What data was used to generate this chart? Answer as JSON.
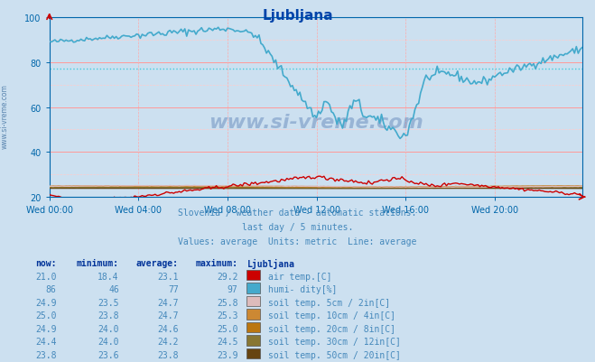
{
  "title": "Ljubljana",
  "background_color": "#cce0f0",
  "plot_bg_color": "#cce0f0",
  "grid_color_major": "#ff9999",
  "grid_color_minor": "#ffcccc",
  "axis_color": "#0055aa",
  "tick_color": "#0066aa",
  "ylabel_range": [
    20,
    100
  ],
  "yticks": [
    20,
    40,
    60,
    80,
    100
  ],
  "subtitle_lines": [
    "Slovenia / weather data - automatic stations.",
    "last day / 5 minutes.",
    "Values: average  Units: metric  Line: average"
  ],
  "subtitle_color": "#4488bb",
  "watermark_text": "www.si-vreme.com",
  "watermark_color": "#003388",
  "watermark_alpha": 0.25,
  "legend_header": "Ljubljana",
  "legend_rows": [
    {
      "now": "21.0",
      "min": "18.4",
      "avg": "23.1",
      "max": "29.2",
      "color": "#cc0000",
      "label": "air temp.[C]"
    },
    {
      "now": "86",
      "min": "46",
      "avg": "77",
      "max": "97",
      "color": "#44aacc",
      "label": "humi- dity[%]"
    },
    {
      "now": "24.9",
      "min": "23.5",
      "avg": "24.7",
      "max": "25.8",
      "color": "#ddbbbb",
      "label": "soil temp. 5cm / 2in[C]"
    },
    {
      "now": "25.0",
      "min": "23.8",
      "avg": "24.7",
      "max": "25.3",
      "color": "#cc8833",
      "label": "soil temp. 10cm / 4in[C]"
    },
    {
      "now": "24.9",
      "min": "24.0",
      "avg": "24.6",
      "max": "25.0",
      "color": "#bb7711",
      "label": "soil temp. 20cm / 8in[C]"
    },
    {
      "now": "24.4",
      "min": "24.0",
      "avg": "24.2",
      "max": "24.5",
      "color": "#887733",
      "label": "soil temp. 30cm / 12in[C]"
    },
    {
      "now": "23.8",
      "min": "23.6",
      "avg": "23.8",
      "max": "23.9",
      "color": "#664411",
      "label": "soil temp. 50cm / 20in[C]"
    }
  ],
  "n_points": 288,
  "x_tick_labels": [
    "Wed 00:00",
    "Wed 04:00",
    "Wed 08:00",
    "Wed 12:00",
    "Wed 16:00",
    "Wed 20:00"
  ],
  "x_tick_positions": [
    0,
    48,
    96,
    144,
    192,
    240
  ],
  "humidity_avg": 77,
  "air_temp_avg": 23.1
}
